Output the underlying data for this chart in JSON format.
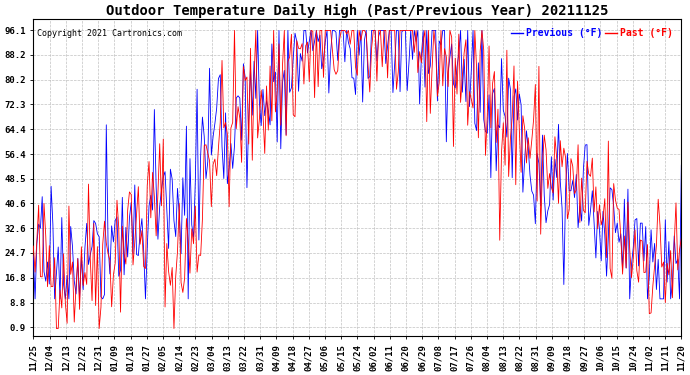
{
  "title": "Outdoor Temperature Daily High (Past/Previous Year) 20211125",
  "copyright": "Copyright 2021 Cartronics.com",
  "legend_previous": "Previous (°F)",
  "legend_past": "Past (°F)",
  "color_previous": "blue",
  "color_past": "red",
  "yticks": [
    0.9,
    8.8,
    16.8,
    24.7,
    32.6,
    40.6,
    48.5,
    56.4,
    64.4,
    72.3,
    80.2,
    88.2,
    96.1
  ],
  "ymin": -2.0,
  "ymax": 99.5,
  "background_color": "#ffffff",
  "grid_color": "#bbbbbb",
  "title_fontsize": 10,
  "tick_fontsize": 6.5,
  "x_labels": [
    "11/25",
    "12/04",
    "12/13",
    "12/22",
    "12/31",
    "01/09",
    "01/18",
    "01/27",
    "02/05",
    "02/14",
    "02/23",
    "03/04",
    "03/13",
    "03/22",
    "03/31",
    "04/09",
    "04/18",
    "04/27",
    "05/06",
    "05/15",
    "05/24",
    "06/02",
    "06/11",
    "06/20",
    "06/29",
    "07/08",
    "07/17",
    "07/26",
    "08/04",
    "08/13",
    "08/22",
    "08/31",
    "09/09",
    "09/18",
    "09/27",
    "10/06",
    "10/15",
    "10/24",
    "11/02",
    "11/11",
    "11/20"
  ]
}
